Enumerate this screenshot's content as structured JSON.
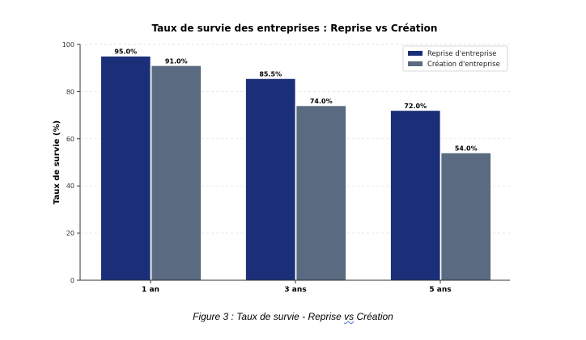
{
  "chart_data": {
    "type": "bar",
    "title": "Taux de survie des entreprises : Reprise vs Création",
    "xlabel": "",
    "ylabel": "Taux de survie (%)",
    "ylim": [
      0,
      100
    ],
    "yticks": [
      0,
      20,
      40,
      60,
      80,
      100
    ],
    "grid": true,
    "legend_position": "top-right",
    "categories": [
      "1 an",
      "3 ans",
      "5 ans"
    ],
    "series": [
      {
        "name": "Reprise d'entreprise",
        "color": "#1b2f78",
        "values": [
          95.0,
          85.5,
          72.0
        ],
        "labels": [
          "95.0%",
          "85.5%",
          "72.0%"
        ]
      },
      {
        "name": "Création d'entreprise",
        "color": "#5a6a80",
        "values": [
          91.0,
          74.0,
          54.0
        ],
        "labels": [
          "91.0%",
          "74.0%",
          "54.0%"
        ]
      }
    ]
  },
  "caption": {
    "before": "Figure 3 : Taux de survie - Reprise ",
    "flagged": "vs",
    "after": " Création"
  }
}
